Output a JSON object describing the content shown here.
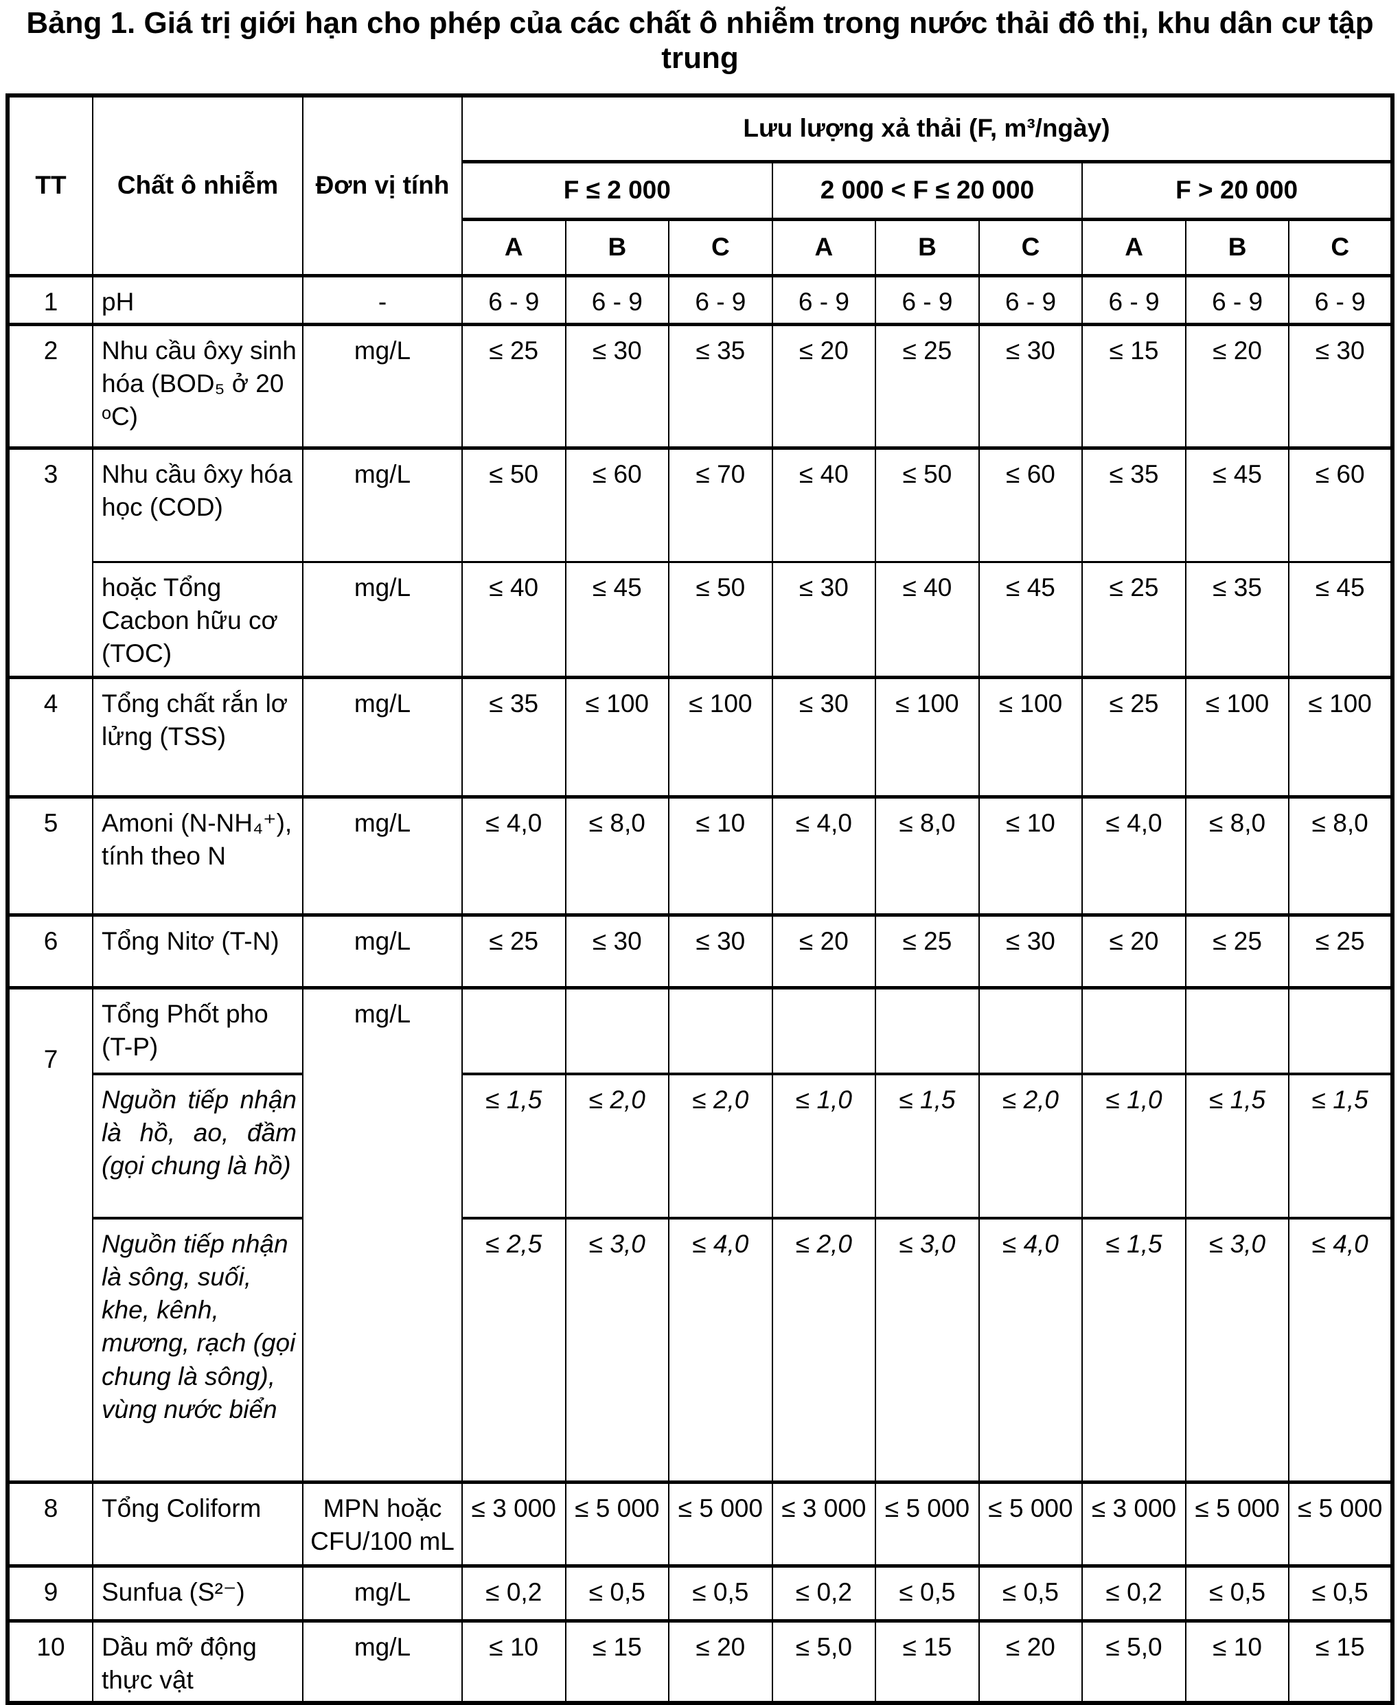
{
  "title": "Bảng 1. Giá trị giới hạn cho phép của các chất ô nhiễm trong nước thải đô thị, khu dân cư tập trung",
  "table": {
    "header": {
      "tt": "TT",
      "pollutant": "Chất ô nhiễm",
      "unit": "Đơn vị tính",
      "flow": "Lưu lượng xả thải (F, m³/ngày)",
      "flow_groups": [
        "F ≤ 2 000",
        "2 000 < F ≤ 20 000",
        "F > 20 000"
      ],
      "class_labels": [
        "A",
        "B",
        "C"
      ]
    },
    "rows": [
      {
        "tt": "1",
        "name": "pH",
        "unit": "-",
        "values": [
          "6 - 9",
          "6 - 9",
          "6 - 9",
          "6 - 9",
          "6 - 9",
          "6 - 9",
          "6 - 9",
          "6 - 9",
          "6 - 9"
        ]
      },
      {
        "tt": "2",
        "name": "Nhu cầu ôxy sinh hóa (BOD₅ ở 20 ᵒC)",
        "unit": "mg/L",
        "values": [
          "≤ 25",
          "≤ 30",
          "≤ 35",
          "≤ 20",
          "≤ 25",
          "≤ 30",
          "≤ 15",
          "≤ 20",
          "≤ 30"
        ]
      },
      {
        "tt": "3",
        "name": "Nhu cầu ôxy hóa học (COD)",
        "unit": "mg/L",
        "values": [
          "≤ 50",
          "≤ 60",
          "≤ 70",
          "≤ 40",
          "≤ 50",
          "≤ 60",
          "≤ 35",
          "≤ 45",
          "≤ 60"
        ]
      },
      {
        "name": "hoặc Tổng Cacbon hữu cơ (TOC)",
        "unit": "mg/L",
        "values": [
          "≤ 40",
          "≤ 45",
          "≤ 50",
          "≤ 30",
          "≤ 40",
          "≤ 45",
          "≤ 25",
          "≤ 35",
          "≤ 45"
        ]
      },
      {
        "tt": "4",
        "name": "Tổng chất rắn lơ lửng (TSS)",
        "unit": "mg/L",
        "values": [
          "≤ 35",
          "≤ 100",
          "≤ 100",
          "≤ 30",
          "≤ 100",
          "≤ 100",
          "≤ 25",
          "≤ 100",
          "≤ 100"
        ]
      },
      {
        "tt": "5",
        "name": "Amoni (N-NH₄⁺), tính theo N",
        "unit": "mg/L",
        "values": [
          "≤ 4,0",
          "≤ 8,0",
          "≤ 10",
          "≤ 4,0",
          "≤ 8,0",
          "≤ 10",
          "≤ 4,0",
          "≤ 8,0",
          "≤ 8,0"
        ]
      },
      {
        "tt": "6",
        "name": "Tổng Nitơ (T-N)",
        "unit": "mg/L",
        "values": [
          "≤ 25",
          "≤ 30",
          "≤ 30",
          "≤ 20",
          "≤ 25",
          "≤ 30",
          "≤ 20",
          "≤ 25",
          "≤ 25"
        ]
      },
      {
        "tt": "7",
        "name": "Tổng Phốt pho (T-P)",
        "unit": "mg/L",
        "values": [
          "",
          "",
          "",
          "",
          "",
          "",
          "",
          "",
          ""
        ]
      },
      {
        "name": "Nguồn tiếp nhận là hồ, ao, đầm (gọi chung là hồ)",
        "values": [
          "≤ 1,5",
          "≤ 2,0",
          "≤ 2,0",
          "≤ 1,0",
          "≤ 1,5",
          "≤ 2,0",
          "≤ 1,0",
          "≤ 1,5",
          "≤ 1,5"
        ]
      },
      {
        "name": "Nguồn tiếp nhận là sông, suối, khe, kênh, mương, rạch (gọi chung là sông), vùng nước biển",
        "values": [
          "≤ 2,5",
          "≤ 3,0",
          "≤ 4,0",
          "≤ 2,0",
          "≤ 3,0",
          "≤ 4,0",
          "≤ 1,5",
          "≤ 3,0",
          "≤ 4,0"
        ]
      },
      {
        "tt": "8",
        "name": "Tổng Coliform",
        "unit": "MPN hoặc CFU/100 mL",
        "values": [
          "≤ 3 000",
          "≤ 5 000",
          "≤ 5 000",
          "≤ 3 000",
          "≤ 5 000",
          "≤ 5 000",
          "≤ 3 000",
          "≤ 5 000",
          "≤ 5 000"
        ]
      },
      {
        "tt": "9",
        "name": "Sunfua (S²⁻)",
        "unit": "mg/L",
        "values": [
          "≤ 0,2",
          "≤ 0,5",
          "≤ 0,5",
          "≤ 0,2",
          "≤ 0,5",
          "≤ 0,5",
          "≤ 0,2",
          "≤ 0,5",
          "≤ 0,5"
        ]
      },
      {
        "tt": "10",
        "name": "Dầu mỡ động thực vật",
        "unit": "mg/L",
        "values": [
          "≤ 10",
          "≤ 15",
          "≤ 20",
          "≤ 5,0",
          "≤ 15",
          "≤ 20",
          "≤ 5,0",
          "≤ 10",
          "≤ 15"
        ]
      }
    ]
  }
}
